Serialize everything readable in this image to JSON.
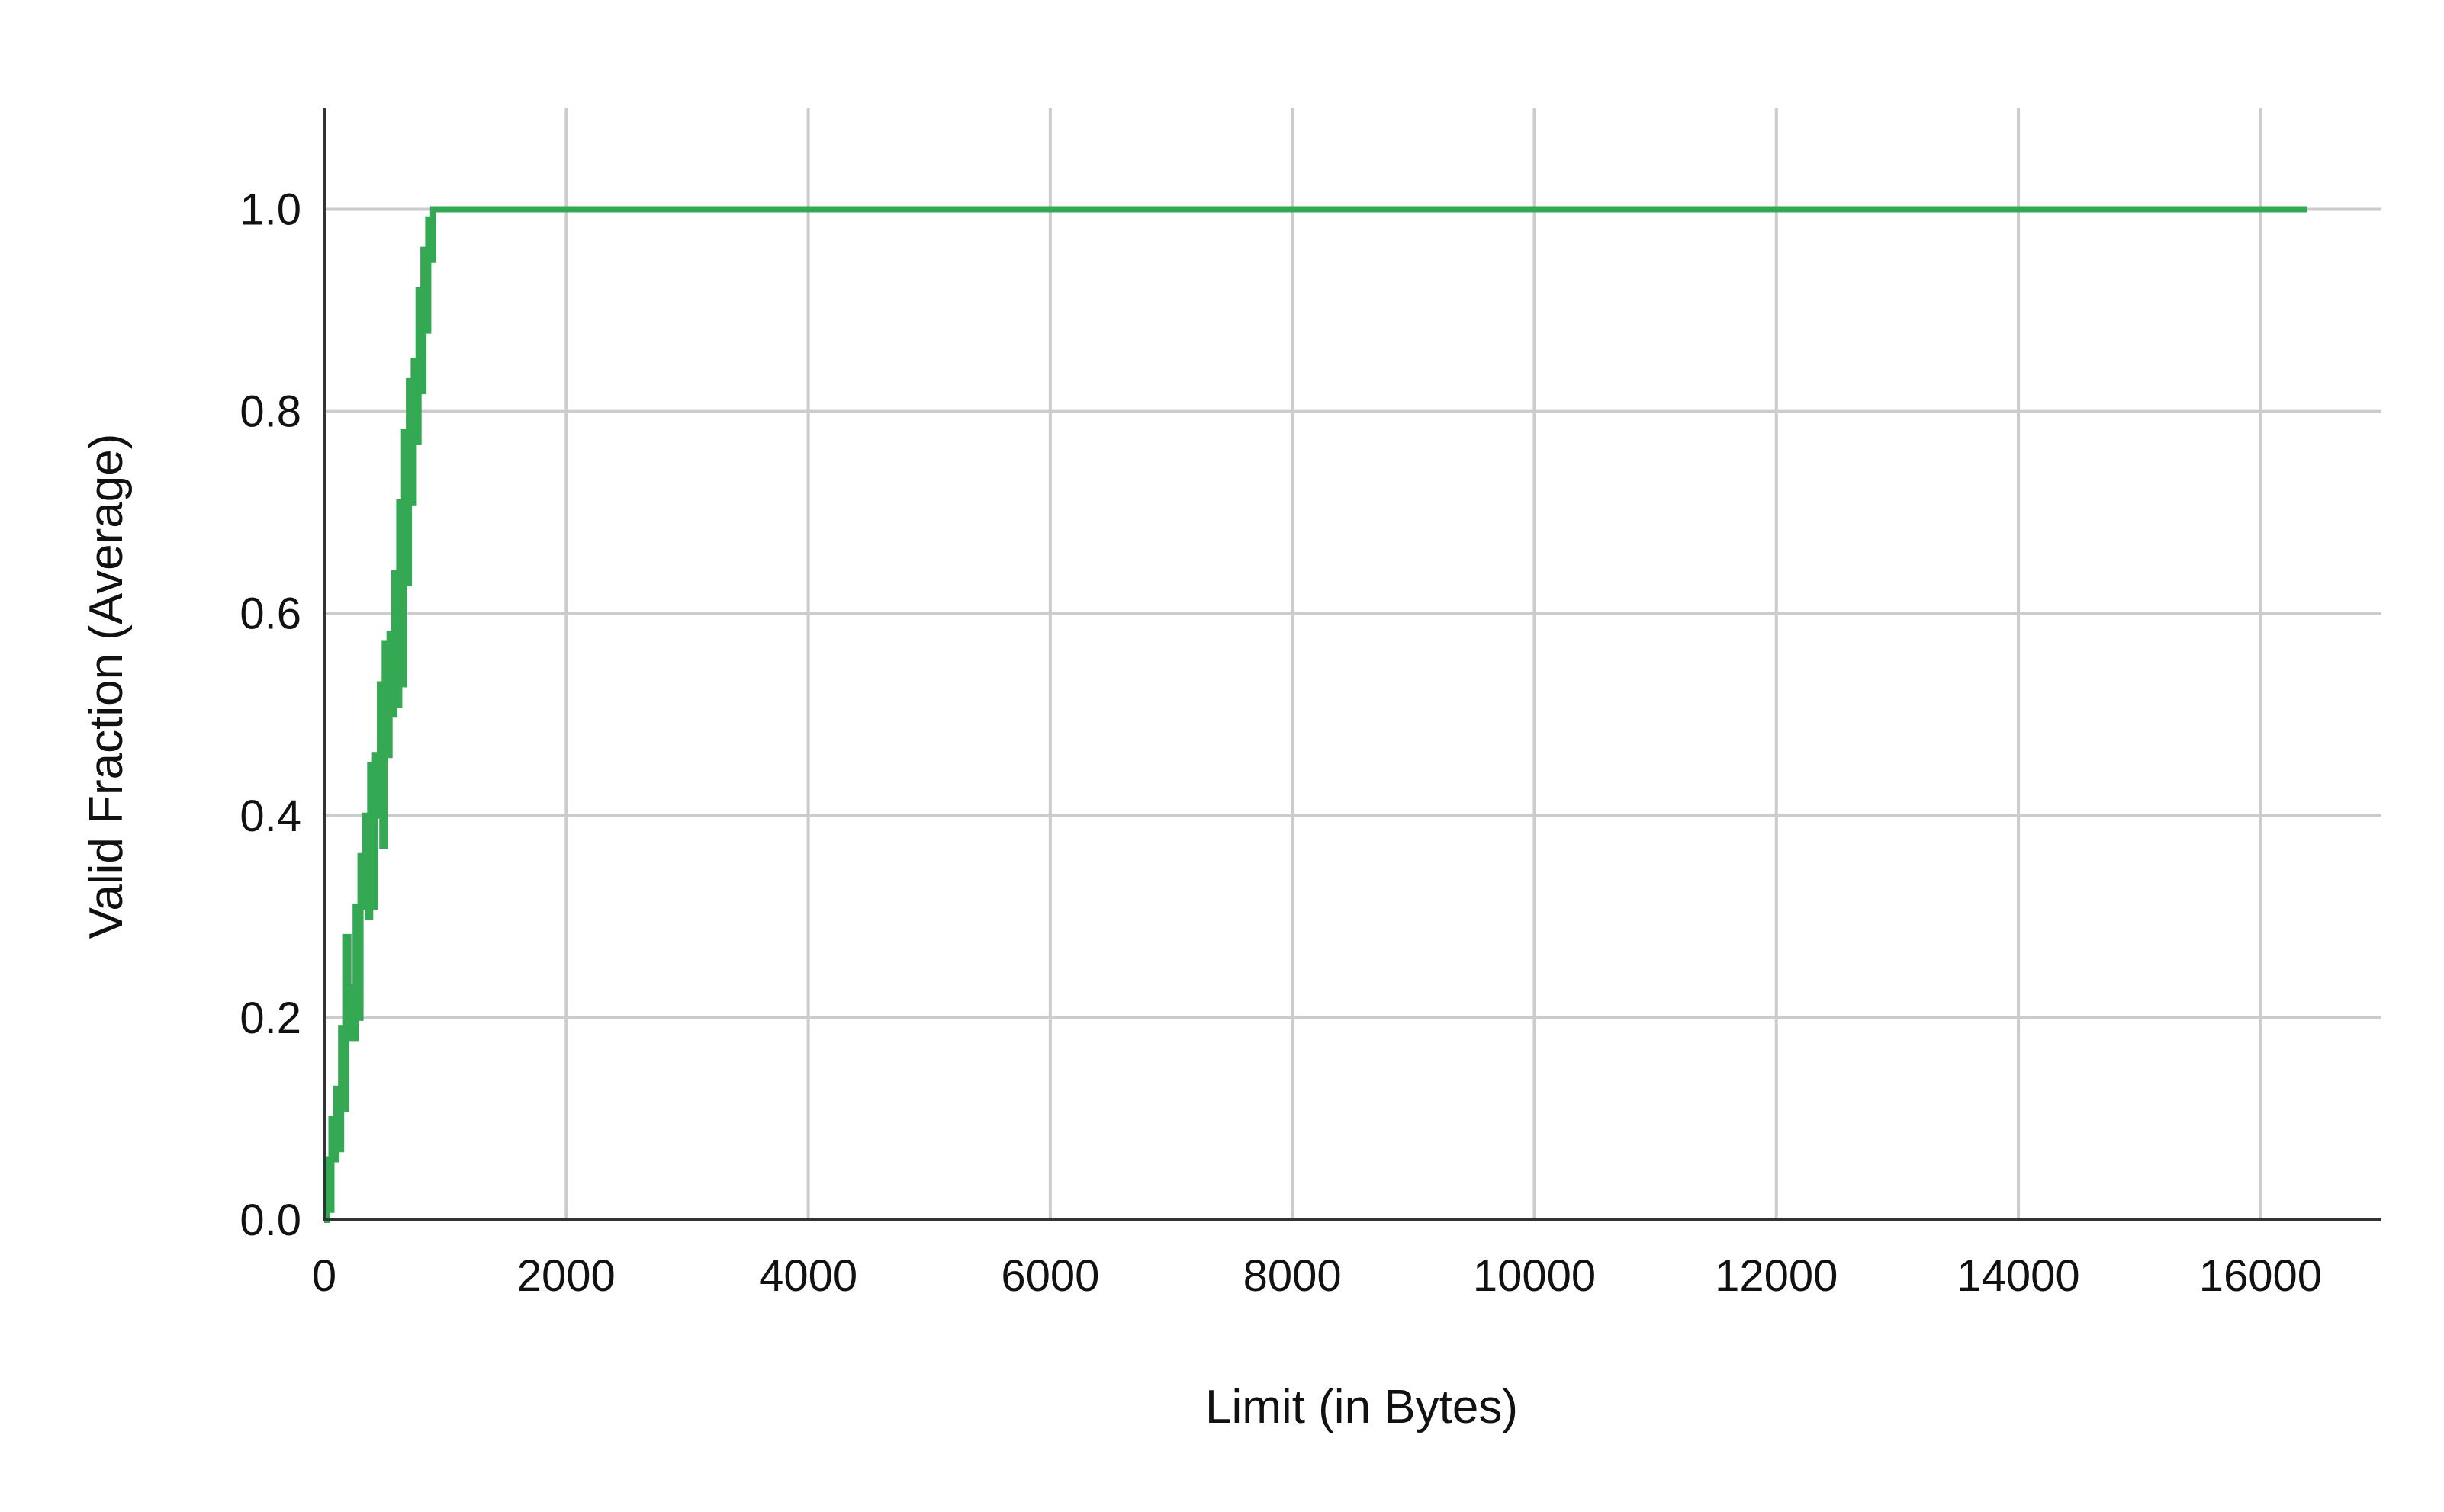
{
  "chart_data": {
    "type": "line",
    "xlabel": "Limit (in Bytes)",
    "ylabel": "Valid Fraction (Average)",
    "xlim": [
      0,
      17000
    ],
    "ylim": [
      0,
      1.1
    ],
    "x_ticks": [
      0,
      2000,
      4000,
      6000,
      8000,
      10000,
      12000,
      14000,
      16000
    ],
    "x_tick_labels": [
      "0",
      "2000",
      "4000",
      "6000",
      "8000",
      "10000",
      "12000",
      "14000",
      "16000"
    ],
    "y_ticks": [
      0,
      0.2,
      0.4,
      0.6,
      0.8,
      1.0
    ],
    "y_tick_labels": [
      "0.0",
      "0.2",
      "0.4",
      "0.6",
      "0.8",
      "1.0"
    ],
    "grid": true,
    "legend": "none",
    "series": [
      {
        "color": "#34a853",
        "style": "step",
        "x": [
          0,
          20,
          40,
          60,
          80,
          100,
          120,
          140,
          160,
          180,
          200,
          220,
          240,
          260,
          280,
          300,
          320,
          340,
          360,
          380,
          400,
          420,
          440,
          460,
          480,
          500,
          520,
          540,
          560,
          580,
          600,
          620,
          640,
          660,
          680,
          700,
          720,
          740,
          760,
          780,
          800,
          820,
          840,
          860,
          880,
          900,
          920,
          940,
          960,
          980,
          1000,
          1024,
          16384
        ],
        "y": [
          0.0,
          0.06,
          0.01,
          0.1,
          0.06,
          0.13,
          0.07,
          0.19,
          0.11,
          0.28,
          0.18,
          0.23,
          0.18,
          0.31,
          0.2,
          0.36,
          0.31,
          0.4,
          0.3,
          0.45,
          0.31,
          0.46,
          0.4,
          0.53,
          0.37,
          0.57,
          0.46,
          0.58,
          0.5,
          0.64,
          0.51,
          0.71,
          0.53,
          0.78,
          0.63,
          0.83,
          0.71,
          0.85,
          0.77,
          0.92,
          0.82,
          0.96,
          0.88,
          0.99,
          0.95,
          1.0,
          1.0,
          1.0,
          1.0,
          1.0,
          1.0,
          1.0,
          1.0
        ]
      }
    ]
  }
}
